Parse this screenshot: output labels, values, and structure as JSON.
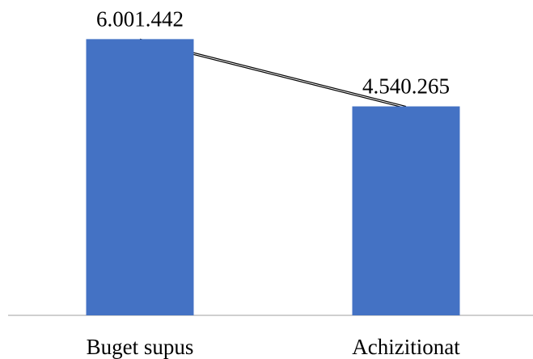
{
  "chart_data": {
    "type": "bar",
    "categories": [
      "Buget supus",
      "Achizitionat"
    ],
    "values": [
      6001442,
      4540265
    ],
    "data_labels": [
      "6.001.442",
      "4.540.265"
    ],
    "title": "",
    "xlabel": "",
    "ylabel": "",
    "ylim": [
      0,
      6500000
    ],
    "grid": false,
    "legend": "none",
    "connector_line": true,
    "colors": {
      "bar": "#4472C4",
      "axis": "#BFBFBF",
      "connector": "#000000",
      "text": "#000000"
    }
  }
}
